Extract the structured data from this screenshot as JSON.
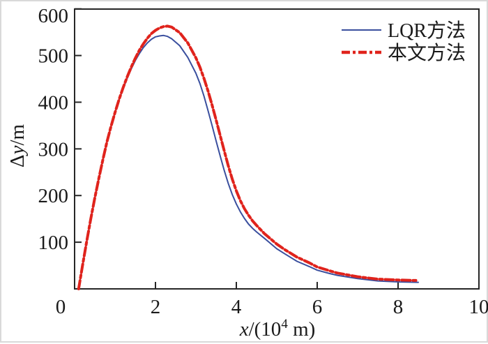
{
  "chart_data": {
    "type": "line",
    "title": "",
    "xlabel": "x/(10^4 m)",
    "ylabel": "Δy/m",
    "xlabel_parts": {
      "var": "x",
      "rest": "/(10",
      "sup": "4",
      "end": " m)"
    },
    "ylabel_parts": {
      "delta": "Δ",
      "var": "y",
      "rest": "/m"
    },
    "xlim": [
      0,
      10
    ],
    "ylim": [
      0,
      600
    ],
    "x_ticks": [
      0,
      2,
      4,
      6,
      8,
      10
    ],
    "y_ticks": [
      100,
      200,
      300,
      400,
      500,
      600
    ],
    "grid": false,
    "legend_position": "top-right-inside",
    "axis_color": "#262626",
    "series": [
      {
        "name": "LQR方法",
        "color": "#3a4f9e",
        "style": "solid",
        "width": 2,
        "points": [
          [
            0.1,
            0
          ],
          [
            0.2,
            52
          ],
          [
            0.3,
            102
          ],
          [
            0.4,
            150
          ],
          [
            0.5,
            195
          ],
          [
            0.6,
            237
          ],
          [
            0.7,
            277
          ],
          [
            0.8,
            315
          ],
          [
            0.9,
            348
          ],
          [
            1.0,
            378
          ],
          [
            1.1,
            405
          ],
          [
            1.2,
            429
          ],
          [
            1.3,
            451
          ],
          [
            1.4,
            471
          ],
          [
            1.5,
            489
          ],
          [
            1.6,
            504
          ],
          [
            1.7,
            517
          ],
          [
            1.8,
            527
          ],
          [
            1.9,
            535
          ],
          [
            2.0,
            540
          ],
          [
            2.1,
            542
          ],
          [
            2.2,
            543
          ],
          [
            2.3,
            541
          ],
          [
            2.4,
            536
          ],
          [
            2.6,
            521
          ],
          [
            2.8,
            496
          ],
          [
            3.0,
            462
          ],
          [
            3.1,
            440
          ],
          [
            3.2,
            413
          ],
          [
            3.3,
            382
          ],
          [
            3.4,
            350
          ],
          [
            3.5,
            317
          ],
          [
            3.6,
            285
          ],
          [
            3.7,
            254
          ],
          [
            3.8,
            226
          ],
          [
            3.9,
            202
          ],
          [
            4.0,
            182
          ],
          [
            4.1,
            165
          ],
          [
            4.2,
            151
          ],
          [
            4.3,
            139
          ],
          [
            4.4,
            130
          ],
          [
            4.5,
            122
          ],
          [
            4.7,
            108
          ],
          [
            5.0,
            86
          ],
          [
            5.2,
            75
          ],
          [
            5.5,
            59
          ],
          [
            5.8,
            48
          ],
          [
            6.0,
            40
          ],
          [
            6.3,
            33
          ],
          [
            6.5,
            29
          ],
          [
            7.0,
            22
          ],
          [
            7.5,
            17
          ],
          [
            8.0,
            15
          ],
          [
            8.5,
            14
          ]
        ]
      },
      {
        "name": "本文方法",
        "color": "#e0231c",
        "style": "dash-dot",
        "width": 4,
        "points": [
          [
            0.1,
            0
          ],
          [
            0.2,
            52
          ],
          [
            0.3,
            102
          ],
          [
            0.4,
            150
          ],
          [
            0.5,
            195
          ],
          [
            0.6,
            237
          ],
          [
            0.7,
            277
          ],
          [
            0.8,
            315
          ],
          [
            0.9,
            348
          ],
          [
            1.0,
            378
          ],
          [
            1.1,
            406
          ],
          [
            1.2,
            431
          ],
          [
            1.3,
            454
          ],
          [
            1.4,
            475
          ],
          [
            1.5,
            494
          ],
          [
            1.6,
            511
          ],
          [
            1.7,
            525
          ],
          [
            1.8,
            537
          ],
          [
            1.9,
            547
          ],
          [
            2.0,
            554
          ],
          [
            2.1,
            559
          ],
          [
            2.2,
            562
          ],
          [
            2.3,
            563
          ],
          [
            2.4,
            561
          ],
          [
            2.6,
            549
          ],
          [
            2.8,
            527
          ],
          [
            3.0,
            495
          ],
          [
            3.1,
            475
          ],
          [
            3.2,
            451
          ],
          [
            3.3,
            424
          ],
          [
            3.4,
            394
          ],
          [
            3.5,
            362
          ],
          [
            3.6,
            329
          ],
          [
            3.7,
            296
          ],
          [
            3.8,
            264
          ],
          [
            3.9,
            235
          ],
          [
            4.0,
            210
          ],
          [
            4.1,
            189
          ],
          [
            4.2,
            172
          ],
          [
            4.3,
            158
          ],
          [
            4.4,
            146
          ],
          [
            4.5,
            136
          ],
          [
            4.7,
            118
          ],
          [
            5.0,
            96
          ],
          [
            5.2,
            84
          ],
          [
            5.5,
            68
          ],
          [
            5.8,
            56
          ],
          [
            6.0,
            47
          ],
          [
            6.3,
            39
          ],
          [
            6.5,
            34
          ],
          [
            7.0,
            26
          ],
          [
            7.5,
            21
          ],
          [
            8.0,
            19
          ],
          [
            8.5,
            18
          ]
        ]
      }
    ]
  }
}
